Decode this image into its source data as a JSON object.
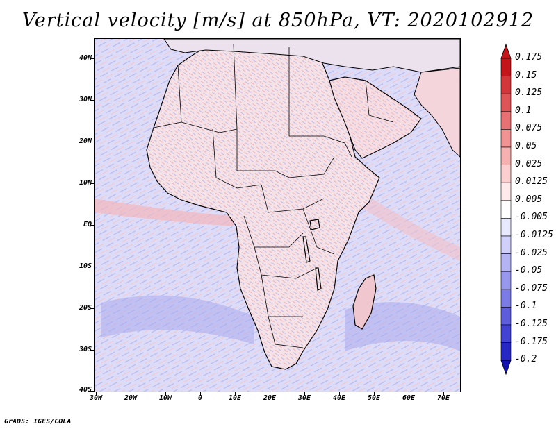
{
  "title": "Vertical velocity [m/s] at 850hPa, VT: 2020102912",
  "footer": "GrADS: IGES/COLA",
  "y_axis": [
    "40N",
    "30N",
    "20N",
    "10N",
    "EQ",
    "10S",
    "20S",
    "30S",
    "40S"
  ],
  "x_axis": [
    "30W",
    "20W",
    "10W",
    "0",
    "10E",
    "20E",
    "30E",
    "40E",
    "50E",
    "60E",
    "70E"
  ],
  "colorbar": {
    "labels": [
      "0.175",
      "0.15",
      "0.125",
      "0.1",
      "0.075",
      "0.05",
      "0.025",
      "0.0125",
      "0.005",
      "-0.005",
      "-0.0125",
      "-0.025",
      "-0.05",
      "-0.075",
      "-0.1",
      "-0.125",
      "-0.175",
      "-0.2"
    ],
    "colors": [
      "#c4151a",
      "#d3363a",
      "#de5457",
      "#e87273",
      "#f09192",
      "#f6b0b0",
      "#fbcfcf",
      "#feeaea",
      "#ffffff",
      "#e9e9fe",
      "#d0d0fb",
      "#b4b4f5",
      "#9797ee",
      "#7b7be6",
      "#5e5edd",
      "#4242d3",
      "#2727c6",
      "#1212b0"
    ]
  },
  "map": {
    "ocean_color": "#dcdcf8",
    "land_color": "#f4e2e6",
    "border_color": "#000000"
  }
}
